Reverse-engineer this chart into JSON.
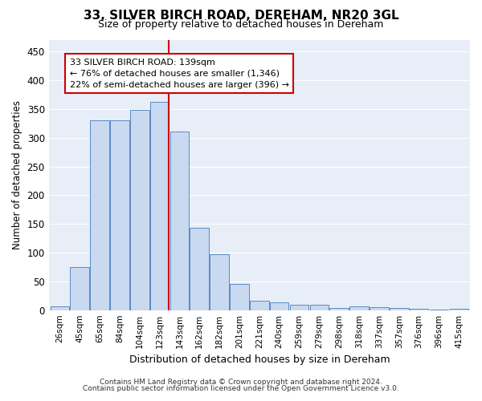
{
  "title": "33, SILVER BIRCH ROAD, DEREHAM, NR20 3GL",
  "subtitle": "Size of property relative to detached houses in Dereham",
  "xlabel": "Distribution of detached houses by size in Dereham",
  "ylabel": "Number of detached properties",
  "footnote1": "Contains HM Land Registry data © Crown copyright and database right 2024.",
  "footnote2": "Contains public sector information licensed under the Open Government Licence v3.0.",
  "categories": [
    "26sqm",
    "45sqm",
    "65sqm",
    "84sqm",
    "104sqm",
    "123sqm",
    "143sqm",
    "162sqm",
    "182sqm",
    "201sqm",
    "221sqm",
    "240sqm",
    "259sqm",
    "279sqm",
    "298sqm",
    "318sqm",
    "337sqm",
    "357sqm",
    "376sqm",
    "396sqm",
    "415sqm"
  ],
  "values": [
    6,
    75,
    330,
    330,
    348,
    362,
    311,
    143,
    97,
    46,
    17,
    14,
    10,
    10,
    4,
    6,
    5,
    4,
    2,
    1,
    3
  ],
  "bar_color": "#c9d9f0",
  "bar_edge_color": "#5a8ac6",
  "red_line_after_index": 5,
  "annotation_title": "33 SILVER BIRCH ROAD: 139sqm",
  "annotation_line1": "← 76% of detached houses are smaller (1,346)",
  "annotation_line2": "22% of semi-detached houses are larger (396) →",
  "annotation_box_color": "#ffffff",
  "annotation_box_edge": "#cc0000",
  "red_line_color": "#cc0000",
  "ylim": [
    0,
    470
  ],
  "yticks": [
    0,
    50,
    100,
    150,
    200,
    250,
    300,
    350,
    400,
    450
  ],
  "bg_color": "#e8eef7",
  "fig_bg_color": "#ffffff",
  "grid_color": "#ffffff",
  "title_fontsize": 11,
  "subtitle_fontsize": 9
}
